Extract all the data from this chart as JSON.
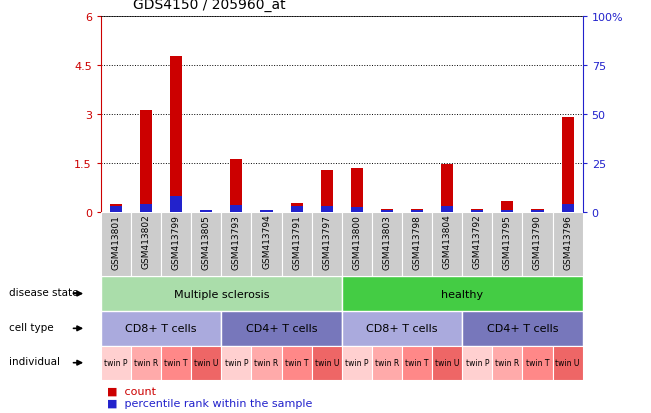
{
  "title": "GDS4150 / 205960_at",
  "samples": [
    "GSM413801",
    "GSM413802",
    "GSM413799",
    "GSM413805",
    "GSM413793",
    "GSM413794",
    "GSM413791",
    "GSM413797",
    "GSM413800",
    "GSM413803",
    "GSM413798",
    "GSM413804",
    "GSM413792",
    "GSM413795",
    "GSM413790",
    "GSM413796"
  ],
  "count_values": [
    0.25,
    3.1,
    4.75,
    0.04,
    1.6,
    0.07,
    0.28,
    1.28,
    1.35,
    0.1,
    0.1,
    1.45,
    0.1,
    0.32,
    0.08,
    2.9
  ],
  "percentile_values": [
    0.18,
    0.25,
    0.48,
    0.04,
    0.22,
    0.04,
    0.18,
    0.18,
    0.15,
    0.04,
    0.06,
    0.18,
    0.06,
    0.07,
    0.04,
    0.25
  ],
  "ylim_left": [
    0,
    6
  ],
  "ylim_right": [
    0,
    100
  ],
  "yticks_left": [
    0,
    1.5,
    3.0,
    4.5,
    6.0
  ],
  "ytick_labels_left": [
    "0",
    "1.5",
    "3",
    "4.5",
    "6"
  ],
  "yticks_right": [
    0,
    25,
    50,
    75,
    100
  ],
  "ytick_labels_right": [
    "0",
    "25",
    "50",
    "75",
    "100%"
  ],
  "count_color": "#cc0000",
  "percentile_color": "#2222cc",
  "bar_width": 0.4,
  "disease_state_row": {
    "label": "disease state",
    "groups": [
      {
        "text": "Multiple sclerosis",
        "start": 0,
        "end": 8,
        "color": "#aaddaa"
      },
      {
        "text": "healthy",
        "start": 8,
        "end": 16,
        "color": "#44cc44"
      }
    ]
  },
  "cell_type_row": {
    "label": "cell type",
    "groups": [
      {
        "text": "CD8+ T cells",
        "start": 0,
        "end": 4,
        "color": "#aaaadd"
      },
      {
        "text": "CD4+ T cells",
        "start": 4,
        "end": 8,
        "color": "#7777bb"
      },
      {
        "text": "CD8+ T cells",
        "start": 8,
        "end": 12,
        "color": "#aaaadd"
      },
      {
        "text": "CD4+ T cells",
        "start": 12,
        "end": 16,
        "color": "#7777bb"
      }
    ]
  },
  "individual_row": {
    "label": "individual",
    "items": [
      "twin P",
      "twin R",
      "twin T",
      "twin U",
      "twin P",
      "twin R",
      "twin T",
      "twin U",
      "twin P",
      "twin R",
      "twin T",
      "twin U",
      "twin P",
      "twin R",
      "twin T",
      "twin U"
    ],
    "colors": [
      "#ffd0d0",
      "#ffaaaa",
      "#ff8888",
      "#ee6666",
      "#ffd0d0",
      "#ffaaaa",
      "#ff8888",
      "#ee6666",
      "#ffd0d0",
      "#ffaaaa",
      "#ff8888",
      "#ee6666",
      "#ffd0d0",
      "#ffaaaa",
      "#ff8888",
      "#ee6666"
    ]
  },
  "legend_count_label": "count",
  "legend_percentile_label": "percentile rank within the sample",
  "background_color": "#ffffff",
  "grid_color": "#888888",
  "tick_label_color_left": "#cc0000",
  "tick_label_color_right": "#2222cc",
  "sample_bg_color": "#cccccc",
  "sample_border_color": "#bbbbbb"
}
